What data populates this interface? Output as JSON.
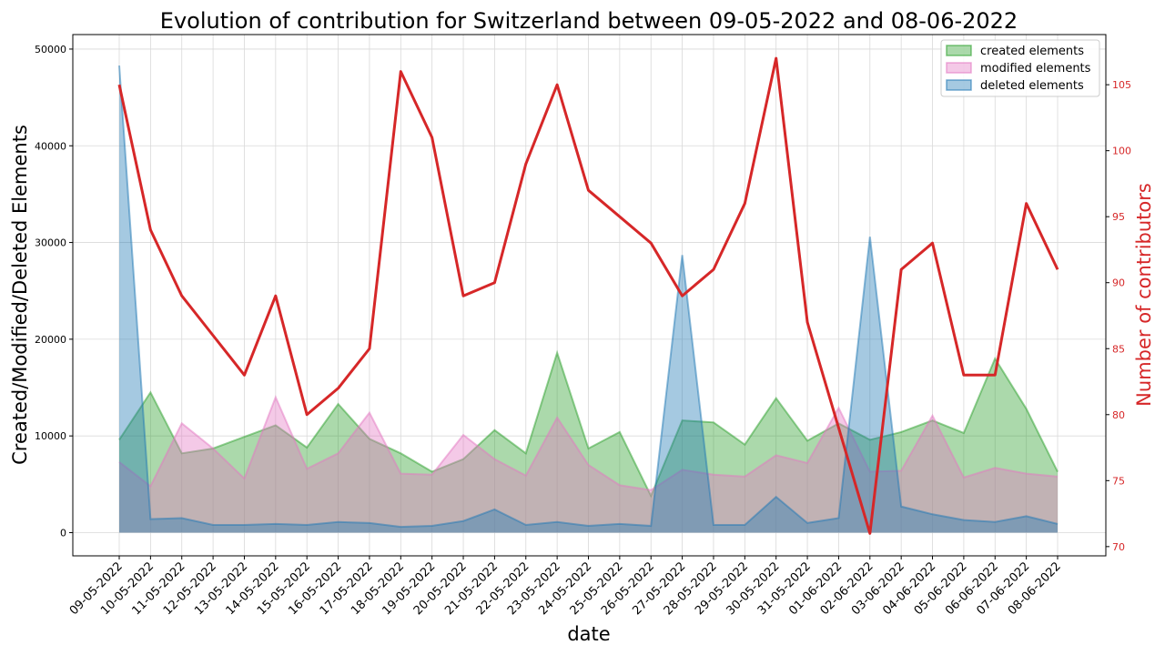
{
  "chart_data": {
    "type": "area",
    "title": "Evolution of contribution for Switzerland between 09-05-2022 and 08-06-2022",
    "xlabel": "date",
    "ylabel": "Created/Modified/Deleted Elements",
    "y2label": "Number of contributors",
    "ylim": [
      -2400,
      51500
    ],
    "y2lim": [
      69.3,
      108.8
    ],
    "yticks": [
      0,
      10000,
      20000,
      30000,
      40000,
      50000
    ],
    "y2ticks": [
      70,
      75,
      80,
      85,
      90,
      95,
      100,
      105
    ],
    "grid": true,
    "legend_position": "top-right",
    "categories": [
      "09-05-2022",
      "10-05-2022",
      "11-05-2022",
      "12-05-2022",
      "13-05-2022",
      "14-05-2022",
      "15-05-2022",
      "16-05-2022",
      "17-05-2022",
      "18-05-2022",
      "19-05-2022",
      "20-05-2022",
      "21-05-2022",
      "22-05-2022",
      "23-05-2022",
      "24-05-2022",
      "25-05-2022",
      "26-05-2022",
      "27-05-2022",
      "28-05-2022",
      "29-05-2022",
      "30-05-2022",
      "31-05-2022",
      "01-06-2022",
      "02-06-2022",
      "03-06-2022",
      "04-06-2022",
      "05-06-2022",
      "06-06-2022",
      "07-06-2022",
      "08-06-2022"
    ],
    "series": [
      {
        "name": "created elements",
        "color": "#2ca02c",
        "values": [
          9600,
          14500,
          8200,
          8700,
          9900,
          11100,
          8800,
          13300,
          9700,
          8200,
          6300,
          7600,
          10600,
          8200,
          18600,
          8700,
          10400,
          3800,
          11600,
          11400,
          9100,
          13900,
          9500,
          11300,
          9600,
          10400,
          11600,
          10300,
          18000,
          12800,
          6300
        ]
      },
      {
        "name": "modified elements",
        "color": "#e377c2",
        "values": [
          7300,
          4800,
          11300,
          8700,
          5600,
          14000,
          6600,
          8200,
          12400,
          6100,
          6000,
          10100,
          7600,
          5900,
          11900,
          7000,
          4900,
          4400,
          6500,
          6000,
          5800,
          8000,
          7200,
          12900,
          6300,
          6400,
          12100,
          5700,
          6700,
          6100,
          5800
        ]
      },
      {
        "name": "deleted elements",
        "color": "#1f77b4",
        "values": [
          48300,
          1400,
          1500,
          800,
          800,
          900,
          800,
          1100,
          1000,
          600,
          700,
          1200,
          2400,
          800,
          1100,
          700,
          900,
          700,
          28700,
          800,
          800,
          3700,
          1000,
          1500,
          30600,
          2700,
          1900,
          1300,
          1100,
          1700,
          900
        ]
      }
    ],
    "line": {
      "name": "Number of contributors",
      "color": "#d62728",
      "axis": "right",
      "values": [
        105,
        94,
        89,
        86,
        83,
        89,
        80,
        82,
        85,
        106,
        101,
        89,
        90,
        99,
        105,
        97,
        95,
        93,
        89,
        91,
        96,
        107,
        87,
        79,
        71,
        91,
        93,
        83,
        83,
        96,
        91
      ]
    }
  }
}
